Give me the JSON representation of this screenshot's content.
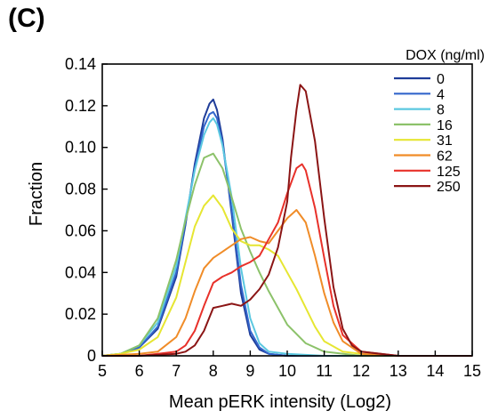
{
  "panel_label": "(C)",
  "chart_data": {
    "type": "line",
    "xlabel": "Mean pERK intensity (Log2)",
    "ylabel": "Fraction",
    "xlim": [
      5,
      15
    ],
    "ylim": [
      0,
      0.14
    ],
    "xticks": [
      5,
      6,
      7,
      8,
      9,
      10,
      11,
      12,
      13,
      14,
      15
    ],
    "yticks": [
      0,
      0.02,
      0.04,
      0.06,
      0.08,
      0.1,
      0.12,
      0.14
    ],
    "ytick_labels": [
      "0",
      "0.02",
      "0.04",
      "0.06",
      "0.08",
      "0.10",
      "0.12",
      "0.14"
    ],
    "grid": false,
    "legend_title": "DOX (ng/ml)",
    "legend_position": "top-right",
    "series": [
      {
        "name": "0",
        "color": "#1f3d99",
        "x": [
          5,
          5.5,
          6,
          6.5,
          7,
          7.25,
          7.5,
          7.75,
          7.9,
          8.0,
          8.1,
          8.25,
          8.5,
          8.75,
          9,
          9.25,
          9.5,
          10,
          11,
          13,
          15
        ],
        "y": [
          0,
          0.001,
          0.004,
          0.013,
          0.038,
          0.063,
          0.092,
          0.114,
          0.121,
          0.123,
          0.118,
          0.104,
          0.068,
          0.03,
          0.01,
          0.003,
          0.001,
          0,
          0,
          0,
          0
        ]
      },
      {
        "name": "4",
        "color": "#3366cc",
        "x": [
          5,
          5.5,
          6,
          6.5,
          7,
          7.25,
          7.5,
          7.75,
          7.9,
          8.0,
          8.1,
          8.25,
          8.5,
          8.75,
          9,
          9.25,
          9.5,
          10,
          11,
          13,
          15
        ],
        "y": [
          0,
          0.001,
          0.004,
          0.014,
          0.04,
          0.064,
          0.09,
          0.11,
          0.116,
          0.117,
          0.114,
          0.102,
          0.07,
          0.034,
          0.012,
          0.004,
          0.001,
          0,
          0,
          0,
          0
        ]
      },
      {
        "name": "8",
        "color": "#5bc8e0",
        "x": [
          5,
          5.5,
          6,
          6.5,
          7,
          7.25,
          7.5,
          7.75,
          7.9,
          8.0,
          8.1,
          8.25,
          8.5,
          8.75,
          9,
          9.25,
          9.5,
          10,
          11,
          13,
          15
        ],
        "y": [
          0,
          0.001,
          0.005,
          0.016,
          0.043,
          0.066,
          0.089,
          0.106,
          0.112,
          0.114,
          0.111,
          0.101,
          0.076,
          0.042,
          0.018,
          0.006,
          0.002,
          0.001,
          0,
          0,
          0
        ]
      },
      {
        "name": "16",
        "color": "#8cc26a",
        "x": [
          5,
          5.5,
          6,
          6.5,
          7,
          7.25,
          7.5,
          7.75,
          8.0,
          8.25,
          8.5,
          8.75,
          9,
          9.25,
          9.5,
          9.75,
          10,
          10.5,
          11,
          12,
          13,
          15
        ],
        "y": [
          0,
          0.001,
          0.005,
          0.018,
          0.046,
          0.065,
          0.082,
          0.095,
          0.097,
          0.09,
          0.076,
          0.061,
          0.05,
          0.04,
          0.031,
          0.023,
          0.015,
          0.006,
          0.002,
          0,
          0,
          0
        ]
      },
      {
        "name": "31",
        "color": "#e6e632",
        "x": [
          5,
          5.5,
          6,
          6.5,
          7,
          7.25,
          7.5,
          7.75,
          8.0,
          8.25,
          8.5,
          8.75,
          9,
          9.25,
          9.5,
          9.75,
          10,
          10.25,
          10.5,
          10.75,
          11,
          11.5,
          12,
          13,
          15
        ],
        "y": [
          0,
          0.001,
          0.003,
          0.009,
          0.028,
          0.045,
          0.062,
          0.072,
          0.077,
          0.071,
          0.061,
          0.055,
          0.053,
          0.053,
          0.051,
          0.048,
          0.04,
          0.032,
          0.023,
          0.014,
          0.007,
          0.002,
          0.001,
          0,
          0
        ]
      },
      {
        "name": "62",
        "color": "#f08c28",
        "x": [
          5,
          6,
          6.5,
          7,
          7.25,
          7.5,
          7.75,
          8.0,
          8.25,
          8.5,
          8.75,
          9,
          9.25,
          9.5,
          9.75,
          10,
          10.25,
          10.5,
          10.75,
          11,
          11.25,
          11.5,
          12,
          13,
          15
        ],
        "y": [
          0,
          0.001,
          0.002,
          0.009,
          0.018,
          0.031,
          0.042,
          0.047,
          0.05,
          0.053,
          0.056,
          0.057,
          0.055,
          0.054,
          0.06,
          0.066,
          0.07,
          0.064,
          0.048,
          0.03,
          0.016,
          0.007,
          0.001,
          0,
          0
        ]
      },
      {
        "name": "125",
        "color": "#e8312a",
        "x": [
          5,
          6,
          6.5,
          7,
          7.25,
          7.5,
          7.75,
          8.0,
          8.25,
          8.5,
          8.75,
          9,
          9.25,
          9.5,
          9.75,
          10,
          10.25,
          10.4,
          10.5,
          10.75,
          11,
          11.25,
          11.5,
          12,
          13,
          15
        ],
        "y": [
          0,
          0,
          0.001,
          0.002,
          0.005,
          0.012,
          0.024,
          0.035,
          0.038,
          0.04,
          0.043,
          0.045,
          0.048,
          0.056,
          0.064,
          0.078,
          0.09,
          0.092,
          0.089,
          0.071,
          0.047,
          0.024,
          0.01,
          0.002,
          0,
          0
        ]
      },
      {
        "name": "250",
        "color": "#8b1515",
        "x": [
          5,
          6,
          7,
          7.25,
          7.5,
          7.75,
          8.0,
          8.25,
          8.5,
          8.75,
          9,
          9.25,
          9.5,
          9.75,
          10,
          10.1,
          10.25,
          10.35,
          10.5,
          10.75,
          11,
          11.25,
          11.5,
          11.75,
          12,
          13,
          15
        ],
        "y": [
          0,
          0,
          0.001,
          0.002,
          0.005,
          0.012,
          0.023,
          0.024,
          0.025,
          0.024,
          0.027,
          0.032,
          0.039,
          0.052,
          0.074,
          0.095,
          0.118,
          0.13,
          0.127,
          0.103,
          0.066,
          0.033,
          0.013,
          0.005,
          0.002,
          0,
          0
        ]
      }
    ]
  }
}
